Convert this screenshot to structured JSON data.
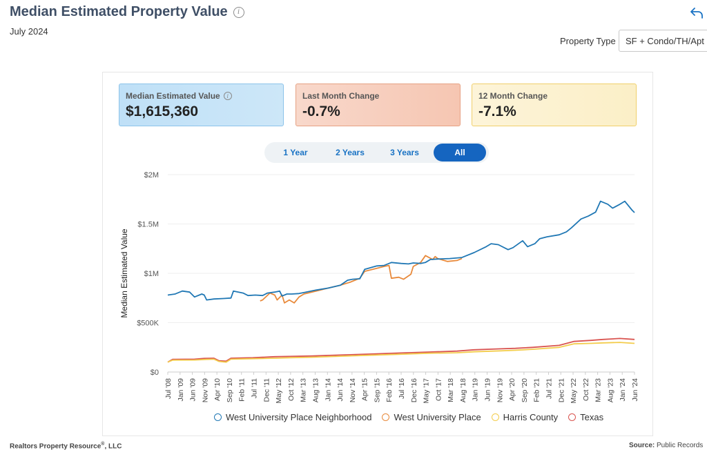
{
  "header": {
    "title": "Median Estimated Property Value",
    "subtitle": "July 2024",
    "property_type_label": "Property Type",
    "property_type_value": "SF + Condo/TH/Apt"
  },
  "kpis": [
    {
      "label": "Median Estimated Value",
      "value": "$1,615,360"
    },
    {
      "label": "Last Month Change",
      "value": "-0.7%"
    },
    {
      "label": "12 Month Change",
      "value": "-7.1%"
    }
  ],
  "range_tabs": [
    {
      "label": "1 Year",
      "active": false
    },
    {
      "label": "2 Years",
      "active": false
    },
    {
      "label": "3 Years",
      "active": false
    },
    {
      "label": "All",
      "active": true
    }
  ],
  "footer": {
    "left_name": "Realtors Property Resource",
    "left_reg": "®",
    "left_suffix": ", LLC",
    "source_label": "Source:",
    "source_value": "Public Records"
  },
  "icons": {
    "info": "info-icon",
    "share": "share-icon"
  },
  "chart_data": {
    "type": "line",
    "title": "",
    "ylabel": "Median Estimated Value",
    "xlabel": "",
    "ylim": [
      0,
      2000000
    ],
    "yticks": [
      {
        "value": 0,
        "label": "$0"
      },
      {
        "value": 500000,
        "label": "$500K"
      },
      {
        "value": 1000000,
        "label": "$1M"
      },
      {
        "value": 1500000,
        "label": "$1.5M"
      },
      {
        "value": 2000000,
        "label": "$2M"
      }
    ],
    "x_range": [
      "2008-07",
      "2024-07"
    ],
    "xticks": [
      "Jul '08",
      "Jan '09",
      "Jun '09",
      "Nov '09",
      "Apr '10",
      "Sep '10",
      "Feb '11",
      "Jul '11",
      "Dec '11",
      "May '12",
      "Oct '12",
      "Mar '13",
      "Aug '13",
      "Jan '14",
      "Jun '14",
      "Nov '14",
      "Apr '15",
      "Sep '15",
      "Feb '16",
      "Jul '16",
      "Dec '16",
      "May '17",
      "Oct '17",
      "Mar '18",
      "Aug '18",
      "Jan '19",
      "Jun '19",
      "Nov '19",
      "Apr '20",
      "Sep '20",
      "Feb '21",
      "Jul '21",
      "Dec '21",
      "May '22",
      "Oct '22",
      "Mar '23",
      "Aug '23",
      "Jan '24",
      "Jun '24"
    ],
    "grid": true,
    "legend_position": "bottom",
    "series": [
      {
        "name": "West University Place Neighborhood",
        "color": "#1f77b4",
        "points": [
          [
            "2008-07",
            780000
          ],
          [
            "2008-10",
            790000
          ],
          [
            "2009-01",
            820000
          ],
          [
            "2009-04",
            810000
          ],
          [
            "2009-06",
            760000
          ],
          [
            "2009-09",
            790000
          ],
          [
            "2009-10",
            780000
          ],
          [
            "2009-11",
            730000
          ],
          [
            "2010-02",
            740000
          ],
          [
            "2010-06",
            745000
          ],
          [
            "2010-09",
            750000
          ],
          [
            "2010-10",
            820000
          ],
          [
            "2011-02",
            800000
          ],
          [
            "2011-04",
            775000
          ],
          [
            "2011-07",
            780000
          ],
          [
            "2011-10",
            775000
          ],
          [
            "2011-12",
            800000
          ],
          [
            "2012-03",
            810000
          ],
          [
            "2012-05",
            820000
          ],
          [
            "2012-06",
            770000
          ],
          [
            "2012-08",
            790000
          ],
          [
            "2012-10",
            790000
          ],
          [
            "2013-01",
            795000
          ],
          [
            "2013-03",
            805000
          ],
          [
            "2013-08",
            830000
          ],
          [
            "2014-01",
            850000
          ],
          [
            "2014-06",
            880000
          ],
          [
            "2014-09",
            930000
          ],
          [
            "2014-11",
            940000
          ],
          [
            "2015-02",
            945000
          ],
          [
            "2015-04",
            1040000
          ],
          [
            "2015-09",
            1075000
          ],
          [
            "2015-12",
            1080000
          ],
          [
            "2016-03",
            1110000
          ],
          [
            "2016-07",
            1100000
          ],
          [
            "2016-10",
            1095000
          ],
          [
            "2016-12",
            1105000
          ],
          [
            "2017-03",
            1100000
          ],
          [
            "2017-05",
            1110000
          ],
          [
            "2017-07",
            1140000
          ],
          [
            "2017-10",
            1145000
          ],
          [
            "2018-03",
            1150000
          ],
          [
            "2018-08",
            1160000
          ],
          [
            "2019-01",
            1210000
          ],
          [
            "2019-06",
            1270000
          ],
          [
            "2019-08",
            1300000
          ],
          [
            "2019-11",
            1290000
          ],
          [
            "2020-03",
            1240000
          ],
          [
            "2020-05",
            1260000
          ],
          [
            "2020-09",
            1330000
          ],
          [
            "2020-11",
            1270000
          ],
          [
            "2021-02",
            1300000
          ],
          [
            "2021-04",
            1350000
          ],
          [
            "2021-07",
            1370000
          ],
          [
            "2021-12",
            1390000
          ],
          [
            "2022-03",
            1420000
          ],
          [
            "2022-05",
            1460000
          ],
          [
            "2022-09",
            1550000
          ],
          [
            "2022-12",
            1580000
          ],
          [
            "2023-03",
            1620000
          ],
          [
            "2023-05",
            1730000
          ],
          [
            "2023-08",
            1700000
          ],
          [
            "2023-10",
            1660000
          ],
          [
            "2024-01",
            1700000
          ],
          [
            "2024-03",
            1730000
          ],
          [
            "2024-06",
            1640000
          ],
          [
            "2024-07",
            1615360
          ]
        ]
      },
      {
        "name": "West University Place",
        "color": "#e8893a",
        "points": [
          [
            "2011-09",
            720000
          ],
          [
            "2011-10",
            730000
          ],
          [
            "2012-01",
            800000
          ],
          [
            "2012-03",
            780000
          ],
          [
            "2012-04",
            730000
          ],
          [
            "2012-06",
            780000
          ],
          [
            "2012-07",
            700000
          ],
          [
            "2012-09",
            730000
          ],
          [
            "2012-11",
            700000
          ],
          [
            "2013-01",
            760000
          ],
          [
            "2013-03",
            790000
          ],
          [
            "2013-08",
            820000
          ],
          [
            "2014-01",
            850000
          ],
          [
            "2014-06",
            880000
          ],
          [
            "2014-10",
            910000
          ],
          [
            "2015-02",
            950000
          ],
          [
            "2015-04",
            1020000
          ],
          [
            "2015-09",
            1050000
          ],
          [
            "2015-12",
            1070000
          ],
          [
            "2016-02",
            1080000
          ],
          [
            "2016-03",
            950000
          ],
          [
            "2016-06",
            960000
          ],
          [
            "2016-08",
            940000
          ],
          [
            "2016-11",
            990000
          ],
          [
            "2016-12",
            1070000
          ],
          [
            "2017-03",
            1110000
          ],
          [
            "2017-05",
            1180000
          ],
          [
            "2017-08",
            1140000
          ],
          [
            "2017-09",
            1170000
          ],
          [
            "2017-10",
            1150000
          ],
          [
            "2018-02",
            1120000
          ],
          [
            "2018-06",
            1130000
          ],
          [
            "2018-08",
            1150000
          ]
        ]
      },
      {
        "name": "Harris County",
        "color": "#f3cc4b",
        "points": [
          [
            "2008-07",
            100000
          ],
          [
            "2008-09",
            120000
          ],
          [
            "2009-06",
            122000
          ],
          [
            "2009-11",
            128000
          ],
          [
            "2010-02",
            130000
          ],
          [
            "2010-04",
            108000
          ],
          [
            "2010-07",
            100000
          ],
          [
            "2010-09",
            130000
          ],
          [
            "2011-06",
            135000
          ],
          [
            "2012-03",
            140000
          ],
          [
            "2012-09",
            145000
          ],
          [
            "2013-06",
            150000
          ],
          [
            "2014-06",
            160000
          ],
          [
            "2015-06",
            170000
          ],
          [
            "2016-06",
            180000
          ],
          [
            "2017-06",
            190000
          ],
          [
            "2018-06",
            195000
          ],
          [
            "2019-01",
            205000
          ],
          [
            "2019-12",
            215000
          ],
          [
            "2020-06",
            220000
          ],
          [
            "2021-01",
            230000
          ],
          [
            "2021-12",
            250000
          ],
          [
            "2022-06",
            285000
          ],
          [
            "2023-01",
            290000
          ],
          [
            "2023-06",
            295000
          ],
          [
            "2024-01",
            300000
          ],
          [
            "2024-07",
            290000
          ]
        ]
      },
      {
        "name": "Texas",
        "color": "#d9534f",
        "points": [
          [
            "2008-07",
            100000
          ],
          [
            "2008-09",
            128000
          ],
          [
            "2009-06",
            130000
          ],
          [
            "2009-10",
            138000
          ],
          [
            "2010-02",
            140000
          ],
          [
            "2010-04",
            115000
          ],
          [
            "2010-07",
            110000
          ],
          [
            "2010-09",
            140000
          ],
          [
            "2011-06",
            145000
          ],
          [
            "2012-03",
            155000
          ],
          [
            "2012-09",
            158000
          ],
          [
            "2013-06",
            162000
          ],
          [
            "2014-06",
            172000
          ],
          [
            "2015-06",
            182000
          ],
          [
            "2016-06",
            192000
          ],
          [
            "2017-06",
            202000
          ],
          [
            "2018-06",
            212000
          ],
          [
            "2019-01",
            225000
          ],
          [
            "2019-12",
            235000
          ],
          [
            "2020-06",
            240000
          ],
          [
            "2021-01",
            250000
          ],
          [
            "2021-12",
            270000
          ],
          [
            "2022-06",
            310000
          ],
          [
            "2023-01",
            320000
          ],
          [
            "2023-06",
            330000
          ],
          [
            "2024-01",
            340000
          ],
          [
            "2024-07",
            330000
          ]
        ]
      }
    ]
  }
}
